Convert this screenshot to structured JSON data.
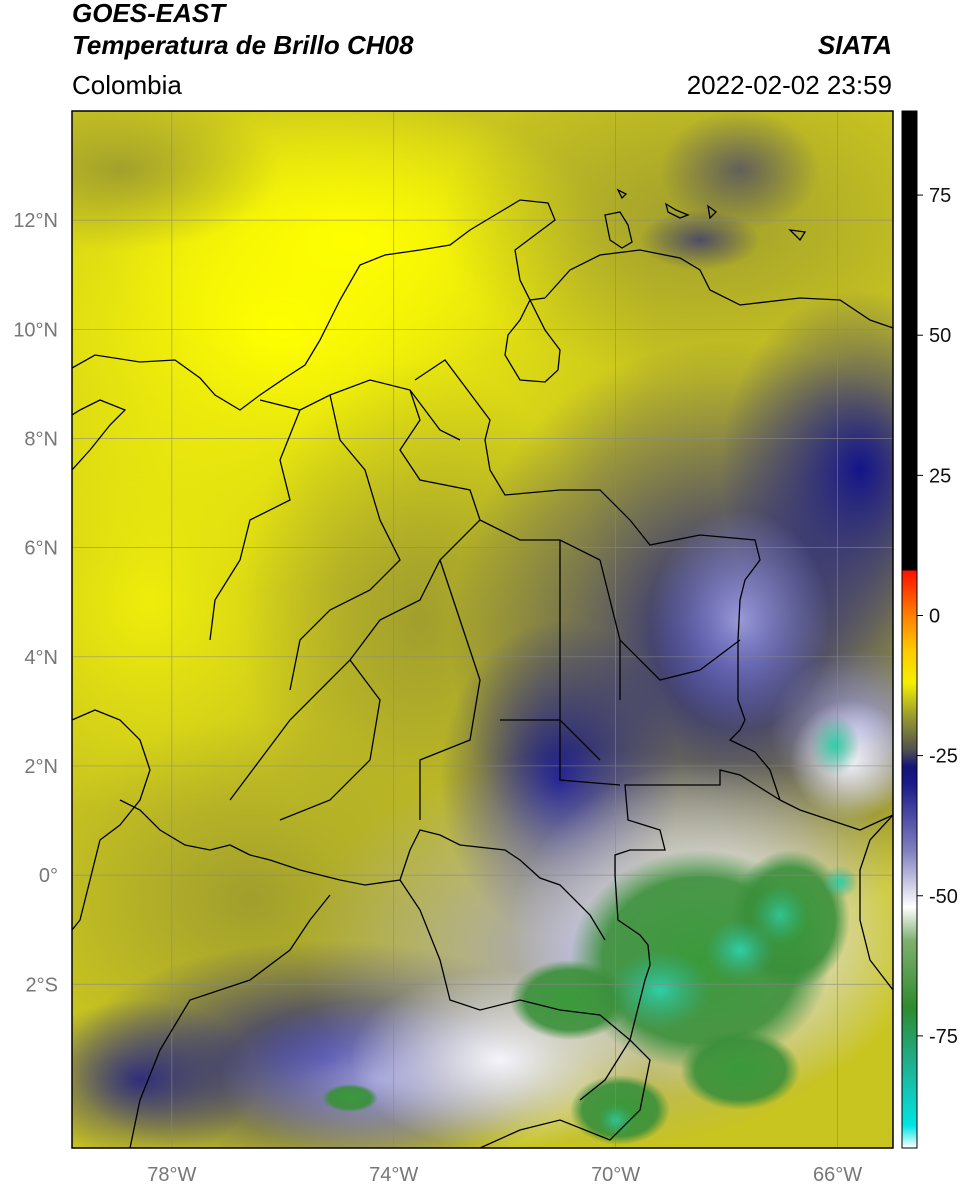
{
  "header": {
    "satellite": "GOES-EAST",
    "product": "Temperatura de Brillo CH08",
    "region": "Colombia",
    "agency": "SIATA",
    "datetime": "2022-02-02 23:59"
  },
  "map": {
    "lon_range": [
      -79.8,
      -65.0
    ],
    "lat_range": [
      -5.0,
      14.0
    ],
    "lat_labels": [
      {
        "lat": 12,
        "label": "12°N"
      },
      {
        "lat": 10,
        "label": "10°N"
      },
      {
        "lat": 8,
        "label": "8°N"
      },
      {
        "lat": 6,
        "label": "6°N"
      },
      {
        "lat": 4,
        "label": "4°N"
      },
      {
        "lat": 2,
        "label": "2°N"
      },
      {
        "lat": 0,
        "label": "0°"
      },
      {
        "lat": -2,
        "label": "2°S"
      }
    ],
    "lon_labels": [
      {
        "lon": -78,
        "label": "78°W"
      },
      {
        "lon": -74,
        "label": "74°W"
      },
      {
        "lon": -70,
        "label": "70°W"
      },
      {
        "lon": -66,
        "label": "66°W"
      }
    ]
  },
  "colorbar": {
    "range": [
      -95,
      90
    ],
    "ticks": [
      {
        "value": 75,
        "label": "75"
      },
      {
        "value": 50,
        "label": "50"
      },
      {
        "value": 25,
        "label": "25"
      },
      {
        "value": 0,
        "label": "0"
      },
      {
        "value": -25,
        "label": "-25"
      },
      {
        "value": -50,
        "label": "-50"
      },
      {
        "value": -75,
        "label": "-75"
      }
    ],
    "stops": [
      {
        "value": -95,
        "color": "#ffffff"
      },
      {
        "value": -91,
        "color": "#00e5e5"
      },
      {
        "value": -80,
        "color": "#20b090"
      },
      {
        "value": -70,
        "color": "#2e8b2e"
      },
      {
        "value": -58,
        "color": "#7fb06f"
      },
      {
        "value": -52,
        "color": "#ffffff"
      },
      {
        "value": -42,
        "color": "#8080c0"
      },
      {
        "value": -30,
        "color": "#1a1a8a"
      },
      {
        "value": -27,
        "color": "#14147a"
      },
      {
        "value": -24,
        "color": "#505050"
      },
      {
        "value": -18,
        "color": "#9a9a30"
      },
      {
        "value": -12,
        "color": "#f5f000"
      },
      {
        "value": -6,
        "color": "#ffc800"
      },
      {
        "value": 0,
        "color": "#ff8000"
      },
      {
        "value": 8,
        "color": "#ff1000"
      },
      {
        "value": 8.01,
        "color": "#000000"
      },
      {
        "value": 90,
        "color": "#000000"
      }
    ]
  }
}
